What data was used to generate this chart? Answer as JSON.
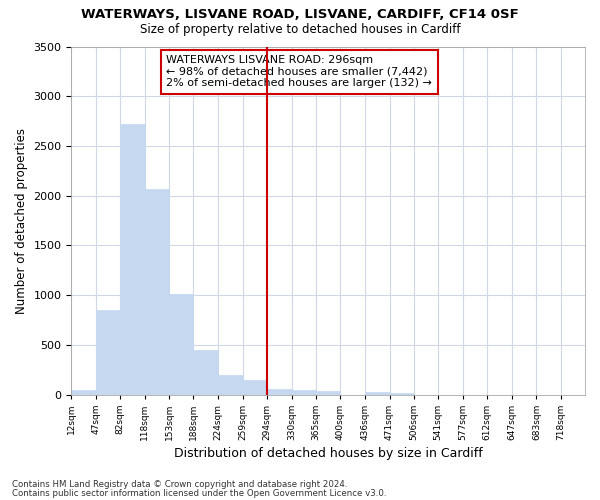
{
  "title": "WATERWAYS, LISVANE ROAD, LISVANE, CARDIFF, CF14 0SF",
  "subtitle": "Size of property relative to detached houses in Cardiff",
  "xlabel": "Distribution of detached houses by size in Cardiff",
  "ylabel": "Number of detached properties",
  "bar_color": "#c5d8f0",
  "bar_edge_color": "#c5d8f0",
  "background_color": "#ffffff",
  "grid_color": "#d0d8e8",
  "vline_x": 294,
  "vline_color": "#cc0000",
  "annotation_title": "WATERWAYS LISVANE ROAD: 296sqm",
  "annotation_line1": "← 98% of detached houses are smaller (7,442)",
  "annotation_line2": "2% of semi-detached houses are larger (132) →",
  "annotation_box_color": "#cc0000",
  "bins": [
    12,
    47,
    82,
    118,
    153,
    188,
    224,
    259,
    294,
    330,
    365,
    400,
    436,
    471,
    506,
    541,
    577,
    612,
    647,
    683,
    718
  ],
  "bar_heights": [
    50,
    850,
    2720,
    2070,
    1010,
    450,
    200,
    150,
    55,
    50,
    40,
    0,
    30,
    20,
    0,
    0,
    0,
    0,
    0,
    0,
    0
  ],
  "ylim": [
    0,
    3500
  ],
  "yticks": [
    0,
    500,
    1000,
    1500,
    2000,
    2500,
    3000,
    3500
  ],
  "footnote1": "Contains HM Land Registry data © Crown copyright and database right 2024.",
  "footnote2": "Contains public sector information licensed under the Open Government Licence v3.0."
}
